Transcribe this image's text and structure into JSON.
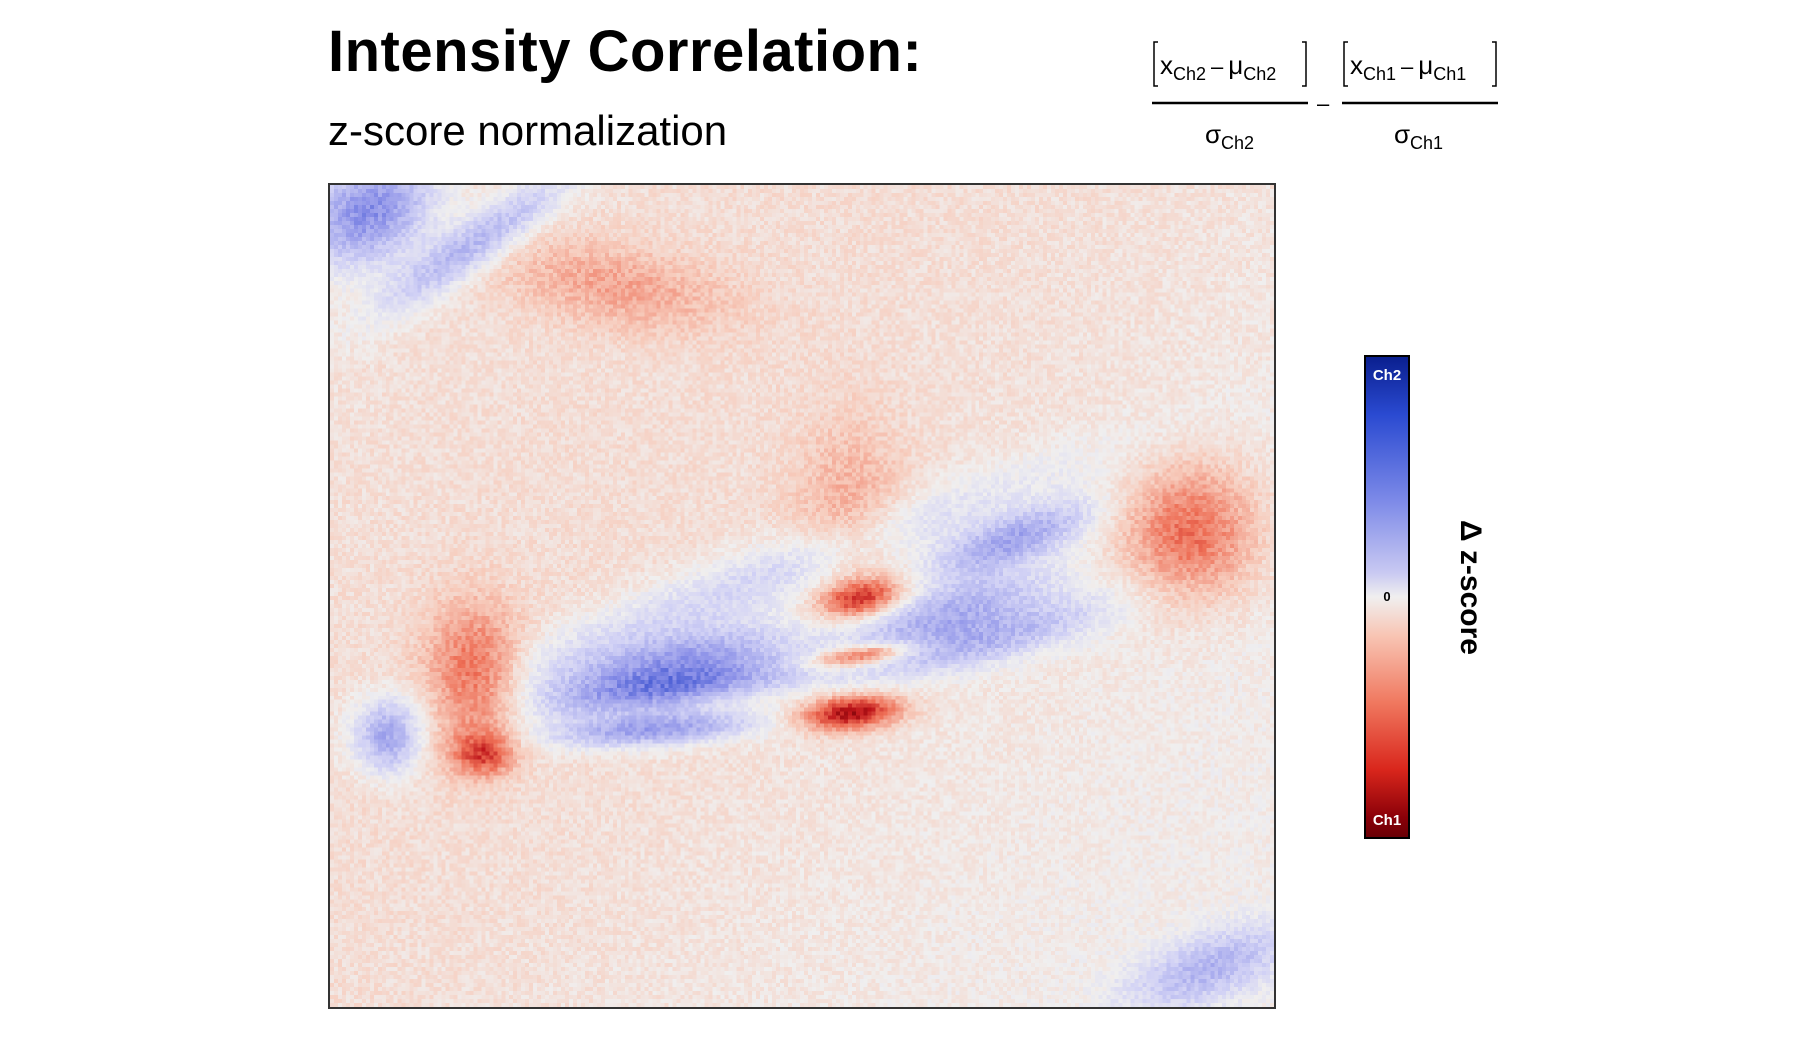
{
  "title": "Intensity Correlation:",
  "subtitle": "z-score normalization",
  "formula": {
    "left_numerator_x": "x",
    "left_numerator_x_sub": "Ch2",
    "left_numerator_minus": "–",
    "left_numerator_mu": "μ",
    "left_numerator_mu_sub": "Ch2",
    "left_denominator_sigma": "σ",
    "left_denominator_sub": "Ch2",
    "operator": "–",
    "right_numerator_x": "x",
    "right_numerator_x_sub": "Ch1",
    "right_numerator_minus": "–",
    "right_numerator_mu": "μ",
    "right_numerator_mu_sub": "Ch1",
    "right_denominator_sigma": "σ",
    "right_denominator_sub": "Ch1"
  },
  "colorbar": {
    "top_label": "Ch2",
    "mid_label": "0",
    "bottom_label": "Ch1",
    "axis_label": "Δ z-score",
    "colors": {
      "ch2": "#1a2fa8",
      "zero": "#f0efef",
      "ch1": "#7a0008"
    }
  },
  "chart_data": {
    "type": "heatmap",
    "title": "Intensity Correlation:",
    "subtitle": "z-score normalization",
    "colorbar_label": "Δ z-score",
    "colorbar_ticks": [
      "Ch2",
      "0",
      "Ch1"
    ],
    "value_range": [
      -1,
      1
    ],
    "background_value": 0.08,
    "features": [
      {
        "value": -0.5,
        "cx": 0.04,
        "cy": 0.03,
        "rx": 0.07,
        "ry": 0.06,
        "angle": -30
      },
      {
        "value": -0.35,
        "cx": 0.15,
        "cy": 0.07,
        "rx": 0.12,
        "ry": 0.03,
        "angle": -35
      },
      {
        "value": -0.45,
        "cx": 0.36,
        "cy": 0.58,
        "rx": 0.13,
        "ry": 0.035,
        "angle": -12
      },
      {
        "value": -0.4,
        "cx": 0.37,
        "cy": 0.61,
        "rx": 0.14,
        "ry": 0.025,
        "angle": -8
      },
      {
        "value": -0.45,
        "cx": 0.34,
        "cy": 0.66,
        "rx": 0.11,
        "ry": 0.02,
        "angle": -4
      },
      {
        "value": -0.35,
        "cx": 0.65,
        "cy": 0.52,
        "rx": 0.12,
        "ry": 0.035,
        "angle": -18
      },
      {
        "value": -0.4,
        "cx": 0.72,
        "cy": 0.43,
        "rx": 0.09,
        "ry": 0.03,
        "angle": -20
      },
      {
        "value": -0.3,
        "cx": 0.7,
        "cy": 0.55,
        "rx": 0.13,
        "ry": 0.03,
        "angle": -15
      },
      {
        "value": -0.4,
        "cx": 0.06,
        "cy": 0.67,
        "rx": 0.035,
        "ry": 0.045,
        "angle": 0
      },
      {
        "value": -0.2,
        "cx": 0.45,
        "cy": 0.48,
        "rx": 0.35,
        "ry": 0.04,
        "angle": -20
      },
      {
        "value": -0.3,
        "cx": 0.93,
        "cy": 0.95,
        "rx": 0.09,
        "ry": 0.04,
        "angle": -20
      },
      {
        "value": 0.55,
        "cx": 0.56,
        "cy": 0.5,
        "rx": 0.04,
        "ry": 0.02,
        "angle": -10
      },
      {
        "value": 0.5,
        "cx": 0.56,
        "cy": 0.57,
        "rx": 0.055,
        "ry": 0.012,
        "angle": -8
      },
      {
        "value": 0.75,
        "cx": 0.55,
        "cy": 0.64,
        "rx": 0.05,
        "ry": 0.02,
        "angle": -5
      },
      {
        "value": 0.4,
        "cx": 0.15,
        "cy": 0.6,
        "rx": 0.05,
        "ry": 0.09,
        "angle": 0
      },
      {
        "value": 0.45,
        "cx": 0.16,
        "cy": 0.69,
        "rx": 0.03,
        "ry": 0.025,
        "angle": 0
      },
      {
        "value": 0.4,
        "cx": 0.91,
        "cy": 0.42,
        "rx": 0.07,
        "ry": 0.08,
        "angle": 0
      },
      {
        "value": 0.2,
        "cx": 0.3,
        "cy": 0.12,
        "rx": 0.12,
        "ry": 0.05,
        "angle": 10
      },
      {
        "value": 0.18,
        "cx": 0.55,
        "cy": 0.4,
        "rx": 0.06,
        "ry": 0.12,
        "angle": 0
      }
    ]
  }
}
